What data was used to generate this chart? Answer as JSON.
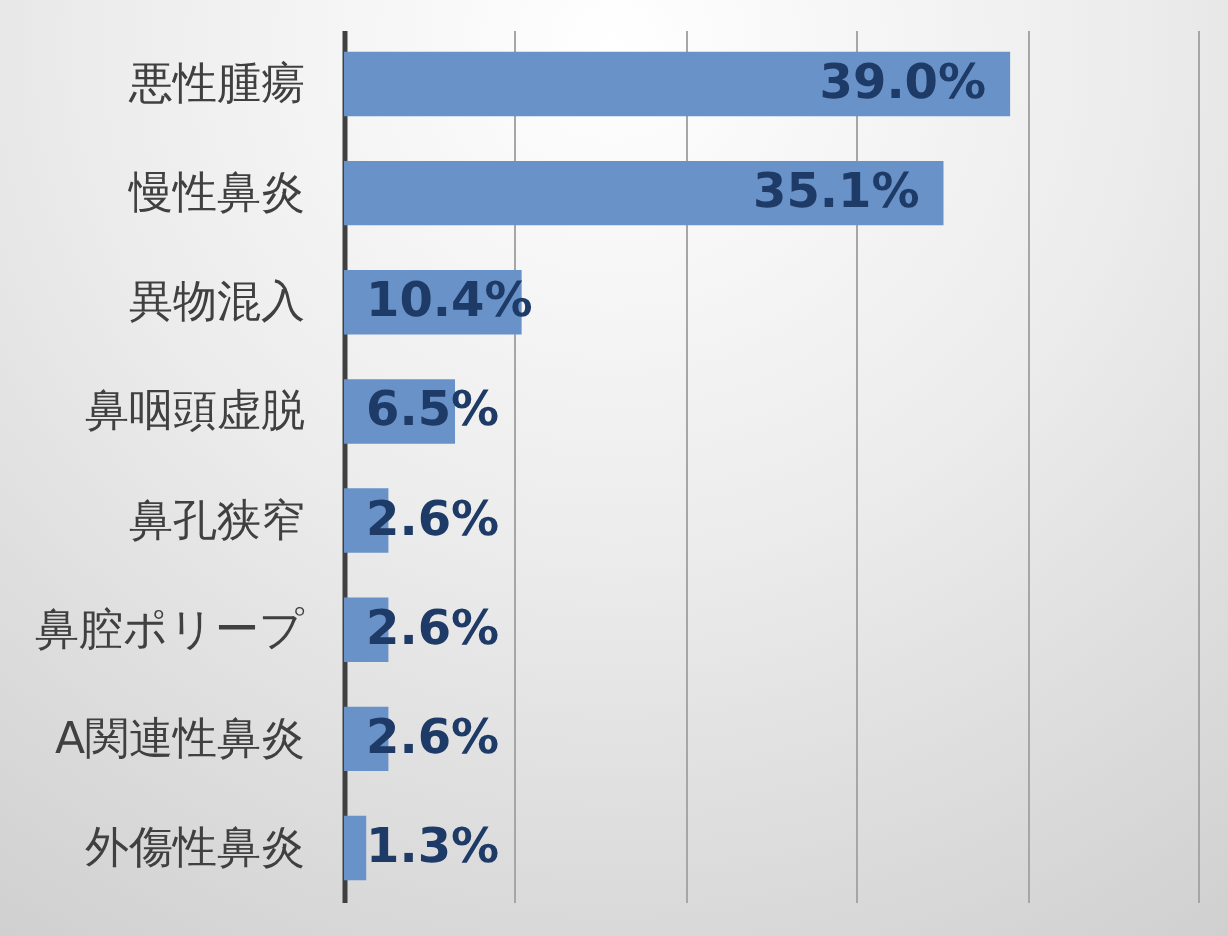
{
  "chart_data": {
    "type": "bar",
    "orientation": "horizontal",
    "categories": [
      "悪性腫瘍",
      "慢性鼻炎",
      "異物混入",
      "鼻咽頭虚脱",
      "鼻孔狭窄",
      "鼻腔ポリープ",
      "A関連性鼻炎",
      "外傷性鼻炎"
    ],
    "values": [
      39.0,
      35.1,
      10.4,
      6.5,
      2.6,
      2.6,
      2.6,
      1.3
    ],
    "value_labels": [
      "39.0%",
      "35.1%",
      "10.4%",
      "6.5%",
      "2.6%",
      "2.6%",
      "2.6%",
      "1.3%"
    ],
    "color": "#6892c8",
    "xlim": [
      0,
      50
    ],
    "xticks": [
      {
        "value": 0,
        "label": null
      },
      {
        "value": 10,
        "label": null
      },
      {
        "value": 20,
        "label": null
      },
      {
        "value": 30,
        "label": null
      },
      {
        "value": 40,
        "label": null
      },
      {
        "value": 50,
        "label": null
      }
    ],
    "grid": "x",
    "tick_labels": "y"
  }
}
